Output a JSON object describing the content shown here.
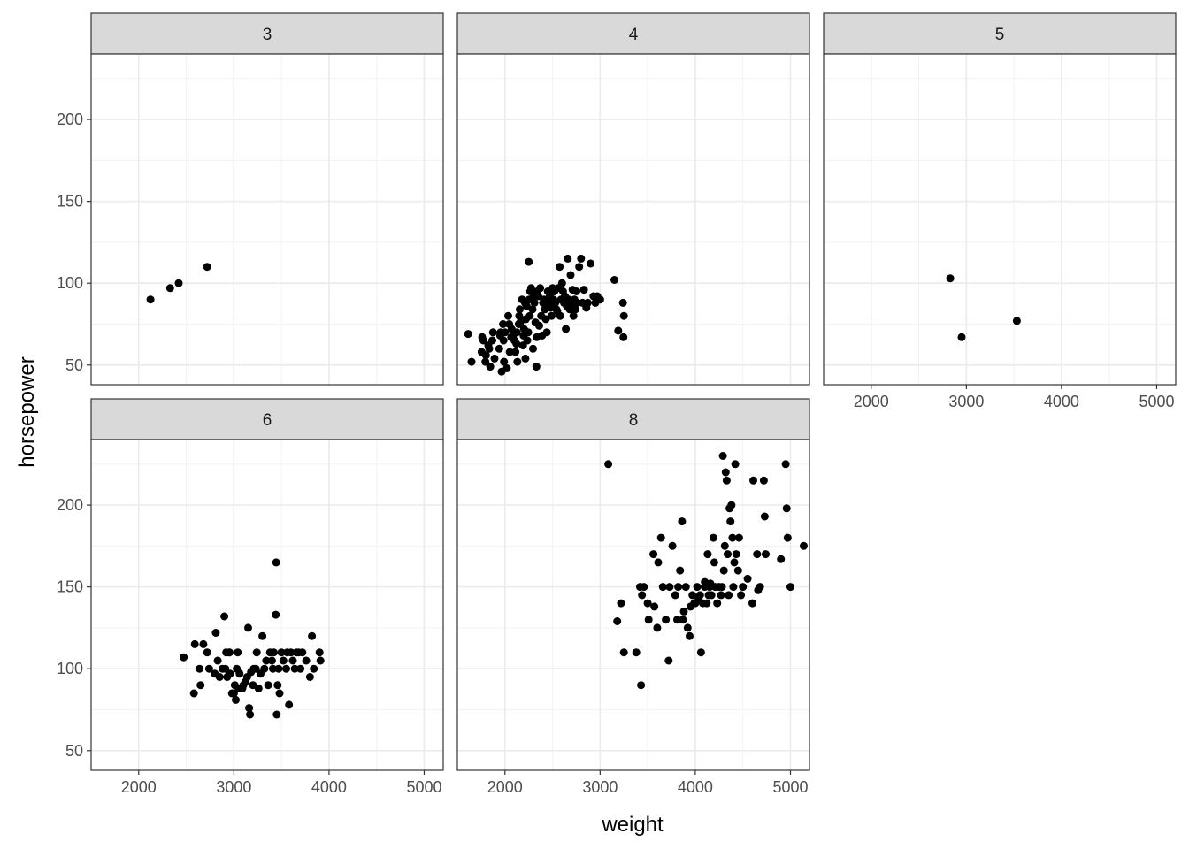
{
  "chart_data": {
    "type": "scatter",
    "facet_by": "cylinders",
    "xlabel": "weight",
    "ylabel": "horsepower",
    "xlim": [
      1500,
      5200
    ],
    "ylim": [
      38,
      240
    ],
    "x_ticks": [
      2000,
      3000,
      4000,
      5000
    ],
    "y_ticks": [
      50,
      100,
      150,
      200
    ],
    "grid": true,
    "colors": {
      "point": "#000000",
      "strip_bg": "#d9d9d9",
      "grid_major": "#ebebeb",
      "panel_border": "#333333",
      "tick_text": "#4d4d4d"
    },
    "panels": [
      {
        "label": "3",
        "points": [
          [
            2124,
            90
          ],
          [
            2330,
            97
          ],
          [
            2420,
            100
          ],
          [
            2720,
            110
          ]
        ]
      },
      {
        "label": "4",
        "points": [
          [
            1613,
            69
          ],
          [
            1649,
            52
          ],
          [
            1755,
            58
          ],
          [
            1760,
            67
          ],
          [
            1773,
            65
          ],
          [
            1795,
            52
          ],
          [
            1800,
            56
          ],
          [
            1825,
            62
          ],
          [
            1835,
            60
          ],
          [
            1845,
            49
          ],
          [
            1867,
            65
          ],
          [
            1875,
            70
          ],
          [
            1890,
            54
          ],
          [
            1940,
            60
          ],
          [
            1950,
            68
          ],
          [
            1955,
            70
          ],
          [
            1965,
            46
          ],
          [
            1980,
            75
          ],
          [
            1985,
            65
          ],
          [
            1990,
            52
          ],
          [
            2000,
            70
          ],
          [
            2020,
            48
          ],
          [
            2035,
            80
          ],
          [
            2045,
            75
          ],
          [
            2050,
            58
          ],
          [
            2065,
            67
          ],
          [
            2070,
            72
          ],
          [
            2085,
            68
          ],
          [
            2100,
            65
          ],
          [
            2110,
            58
          ],
          [
            2120,
            63
          ],
          [
            2125,
            70
          ],
          [
            2130,
            52
          ],
          [
            2145,
            75
          ],
          [
            2150,
            80
          ],
          [
            2155,
            84
          ],
          [
            2160,
            76
          ],
          [
            2180,
            90
          ],
          [
            2190,
            62
          ],
          [
            2195,
            68
          ],
          [
            2200,
            72
          ],
          [
            2210,
            88
          ],
          [
            2215,
            54
          ],
          [
            2220,
            78
          ],
          [
            2228,
            86
          ],
          [
            2235,
            65
          ],
          [
            2245,
            70
          ],
          [
            2250,
            113
          ],
          [
            2255,
            90
          ],
          [
            2260,
            80
          ],
          [
            2265,
            95
          ],
          [
            2275,
            97
          ],
          [
            2290,
            84
          ],
          [
            2295,
            60
          ],
          [
            2300,
            92
          ],
          [
            2310,
            88
          ],
          [
            2320,
            76
          ],
          [
            2330,
            49
          ],
          [
            2335,
            67
          ],
          [
            2340,
            95
          ],
          [
            2350,
            92
          ],
          [
            2360,
            74
          ],
          [
            2370,
            97
          ],
          [
            2380,
            80
          ],
          [
            2390,
            68
          ],
          [
            2400,
            88
          ],
          [
            2410,
            90
          ],
          [
            2420,
            84
          ],
          [
            2430,
            78
          ],
          [
            2440,
            70
          ],
          [
            2450,
            95
          ],
          [
            2460,
            88
          ],
          [
            2470,
            92
          ],
          [
            2480,
            85
          ],
          [
            2490,
            80
          ],
          [
            2500,
            97
          ],
          [
            2510,
            90
          ],
          [
            2520,
            95
          ],
          [
            2530,
            88
          ],
          [
            2540,
            84
          ],
          [
            2550,
            83
          ],
          [
            2560,
            97
          ],
          [
            2575,
            110
          ],
          [
            2580,
            80
          ],
          [
            2590,
            90
          ],
          [
            2600,
            100
          ],
          [
            2610,
            95
          ],
          [
            2620,
            88
          ],
          [
            2630,
            92
          ],
          [
            2640,
            72
          ],
          [
            2650,
            86
          ],
          [
            2660,
            115
          ],
          [
            2670,
            90
          ],
          [
            2680,
            84
          ],
          [
            2690,
            105
          ],
          [
            2700,
            87
          ],
          [
            2710,
            96
          ],
          [
            2720,
            80
          ],
          [
            2730,
            90
          ],
          [
            2740,
            84
          ],
          [
            2750,
            95
          ],
          [
            2760,
            88
          ],
          [
            2780,
            110
          ],
          [
            2800,
            115
          ],
          [
            2815,
            88
          ],
          [
            2830,
            96
          ],
          [
            2855,
            85
          ],
          [
            2870,
            88
          ],
          [
            2900,
            112
          ],
          [
            2930,
            92
          ],
          [
            2950,
            88
          ],
          [
            2970,
            92
          ],
          [
            3000,
            90
          ],
          [
            3150,
            102
          ],
          [
            3190,
            71
          ],
          [
            3250,
            80
          ],
          [
            3240,
            88
          ],
          [
            3245,
            67
          ]
        ]
      },
      {
        "label": "5",
        "points": [
          [
            2830,
            103
          ],
          [
            2950,
            67
          ],
          [
            3530,
            77
          ]
        ]
      },
      {
        "label": "6",
        "points": [
          [
            2472,
            107
          ],
          [
            2580,
            85
          ],
          [
            2590,
            115
          ],
          [
            2640,
            100
          ],
          [
            2650,
            90
          ],
          [
            2680,
            115
          ],
          [
            2720,
            110
          ],
          [
            2740,
            100
          ],
          [
            2800,
            97
          ],
          [
            2810,
            122
          ],
          [
            2830,
            105
          ],
          [
            2850,
            95
          ],
          [
            2880,
            100
          ],
          [
            2900,
            132
          ],
          [
            2910,
            100
          ],
          [
            2920,
            110
          ],
          [
            2930,
            95
          ],
          [
            2950,
            110
          ],
          [
            2955,
            110
          ],
          [
            2960,
            97
          ],
          [
            2980,
            85
          ],
          [
            3000,
            85
          ],
          [
            3010,
            90
          ],
          [
            3020,
            81
          ],
          [
            3030,
            100
          ],
          [
            3040,
            110
          ],
          [
            3050,
            88
          ],
          [
            3060,
            97
          ],
          [
            3090,
            88
          ],
          [
            3100,
            90
          ],
          [
            3120,
            92
          ],
          [
            3140,
            95
          ],
          [
            3150,
            125
          ],
          [
            3160,
            76
          ],
          [
            3170,
            72
          ],
          [
            3180,
            98
          ],
          [
            3200,
            90
          ],
          [
            3210,
            100
          ],
          [
            3230,
            100
          ],
          [
            3240,
            110
          ],
          [
            3260,
            88
          ],
          [
            3280,
            97
          ],
          [
            3300,
            120
          ],
          [
            3320,
            100
          ],
          [
            3340,
            105
          ],
          [
            3360,
            90
          ],
          [
            3380,
            110
          ],
          [
            3400,
            105
          ],
          [
            3410,
            100
          ],
          [
            3420,
            110
          ],
          [
            3440,
            133
          ],
          [
            3445,
            165
          ],
          [
            3450,
            72
          ],
          [
            3460,
            90
          ],
          [
            3470,
            100
          ],
          [
            3480,
            85
          ],
          [
            3500,
            110
          ],
          [
            3520,
            105
          ],
          [
            3550,
            100
          ],
          [
            3560,
            110
          ],
          [
            3580,
            78
          ],
          [
            3600,
            110
          ],
          [
            3620,
            105
          ],
          [
            3640,
            100
          ],
          [
            3660,
            110
          ],
          [
            3680,
            110
          ],
          [
            3700,
            100
          ],
          [
            3720,
            110
          ],
          [
            3760,
            105
          ],
          [
            3800,
            95
          ],
          [
            3820,
            120
          ],
          [
            3840,
            100
          ],
          [
            3900,
            110
          ],
          [
            3910,
            105
          ]
        ]
      },
      {
        "label": "8",
        "points": [
          [
            3086,
            225
          ],
          [
            3180,
            129
          ],
          [
            3220,
            140
          ],
          [
            3250,
            110
          ],
          [
            3380,
            110
          ],
          [
            3420,
            150
          ],
          [
            3430,
            90
          ],
          [
            3440,
            145
          ],
          [
            3460,
            150
          ],
          [
            3500,
            140
          ],
          [
            3510,
            130
          ],
          [
            3560,
            170
          ],
          [
            3570,
            138
          ],
          [
            3600,
            125
          ],
          [
            3610,
            165
          ],
          [
            3640,
            180
          ],
          [
            3660,
            150
          ],
          [
            3690,
            130
          ],
          [
            3720,
            105
          ],
          [
            3730,
            150
          ],
          [
            3760,
            175
          ],
          [
            3790,
            145
          ],
          [
            3810,
            130
          ],
          [
            3820,
            150
          ],
          [
            3840,
            160
          ],
          [
            3860,
            190
          ],
          [
            3870,
            130
          ],
          [
            3880,
            135
          ],
          [
            3900,
            150
          ],
          [
            3920,
            125
          ],
          [
            3940,
            120
          ],
          [
            3950,
            138
          ],
          [
            3970,
            145
          ],
          [
            3990,
            140
          ],
          [
            4000,
            140
          ],
          [
            4020,
            150
          ],
          [
            4030,
            143
          ],
          [
            4050,
            145
          ],
          [
            4060,
            110
          ],
          [
            4080,
            140
          ],
          [
            4100,
            153
          ],
          [
            4100,
            150
          ],
          [
            4120,
            140
          ],
          [
            4130,
            170
          ],
          [
            4140,
            145
          ],
          [
            4150,
            150
          ],
          [
            4160,
            152
          ],
          [
            4170,
            145
          ],
          [
            4190,
            180
          ],
          [
            4200,
            165
          ],
          [
            4210,
            150
          ],
          [
            4230,
            140
          ],
          [
            4250,
            150
          ],
          [
            4270,
            145
          ],
          [
            4280,
            150
          ],
          [
            4290,
            230
          ],
          [
            4300,
            160
          ],
          [
            4310,
            175
          ],
          [
            4320,
            220
          ],
          [
            4330,
            215
          ],
          [
            4340,
            170
          ],
          [
            4350,
            145
          ],
          [
            4360,
            198
          ],
          [
            4370,
            190
          ],
          [
            4380,
            200
          ],
          [
            4390,
            180
          ],
          [
            4400,
            150
          ],
          [
            4410,
            165
          ],
          [
            4420,
            225
          ],
          [
            4430,
            170
          ],
          [
            4450,
            160
          ],
          [
            4460,
            180
          ],
          [
            4480,
            145
          ],
          [
            4500,
            150
          ],
          [
            4550,
            155
          ],
          [
            4600,
            140
          ],
          [
            4610,
            215
          ],
          [
            4650,
            170
          ],
          [
            4660,
            148
          ],
          [
            4680,
            150
          ],
          [
            4720,
            215
          ],
          [
            4730,
            193
          ],
          [
            4740,
            170
          ],
          [
            4900,
            167
          ],
          [
            4950,
            225
          ],
          [
            4960,
            198
          ],
          [
            4970,
            180
          ],
          [
            5000,
            150
          ],
          [
            5140,
            175
          ]
        ]
      }
    ]
  }
}
